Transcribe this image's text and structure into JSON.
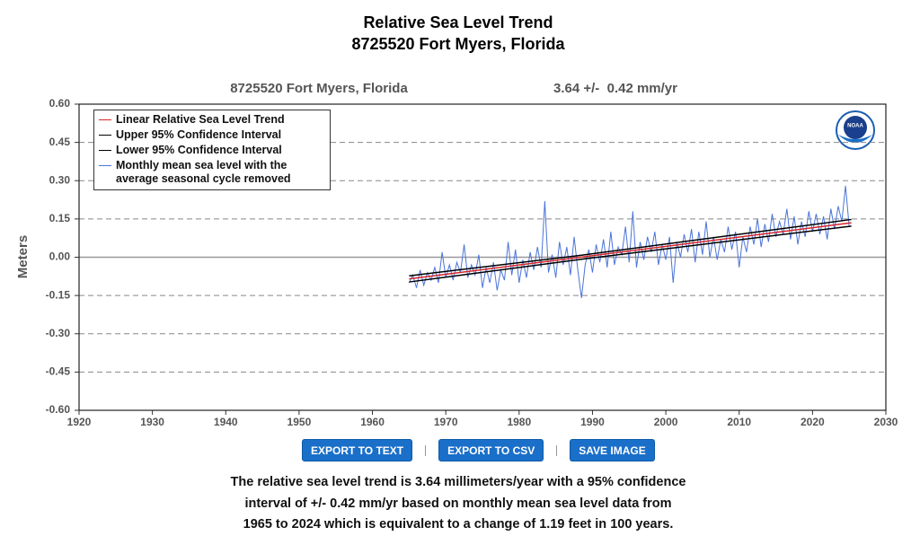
{
  "chart_data": {
    "type": "line",
    "title": "Relative Sea Level Trend",
    "subtitle": "8725520 Fort Myers, Florida",
    "plot_title": "8725520 Fort Myers, Florida",
    "trend_label": "3.64 +/-  0.42 mm/yr",
    "y_label": "Meters",
    "logo_text": "NOAA",
    "xlim": [
      1920,
      2030
    ],
    "xticks": [
      1920,
      1930,
      1940,
      1950,
      1960,
      1970,
      1980,
      1990,
      2000,
      2010,
      2020,
      2030
    ],
    "ylim": [
      -0.6,
      0.6
    ],
    "yticks": [
      {
        "value": 0.6,
        "label": "0.60"
      },
      0.45,
      {
        "value": 0.3,
        "label": "0.30"
      },
      0.15,
      {
        "value": 0,
        "label": "0.00"
      },
      -0.15,
      {
        "value": -0.3,
        "label": "-0.30"
      },
      -0.45,
      {
        "value": -0.6,
        "label": "-0.60"
      }
    ],
    "grid": true,
    "series": [
      {
        "name": "Linear Relative Sea Level Trend",
        "color": "#d62728",
        "x": [
          1965,
          2025.3
        ],
        "values": [
          -0.085,
          0.135
        ]
      },
      {
        "name": "Upper 95% Confidence Interval",
        "color": "#000000",
        "x": [
          1965,
          1988.5,
          2025.3
        ],
        "values": [
          -0.073,
          0.008,
          0.148
        ]
      },
      {
        "name": "Lower 95% Confidence Interval",
        "color": "#000000",
        "x": [
          1965,
          1988.5,
          2025.3
        ],
        "values": [
          -0.097,
          -0.008,
          0.122
        ]
      },
      {
        "name": "Monthly mean sea level with the average seasonal cycle removed",
        "color": "#4a74d9",
        "x": [
          1965,
          1965.5,
          1966,
          1966.5,
          1967,
          1967.5,
          1968,
          1968.5,
          1969,
          1969.5,
          1970,
          1970.5,
          1971,
          1971.5,
          1972,
          1972.5,
          1973,
          1973.5,
          1974,
          1974.5,
          1975,
          1975.5,
          1976,
          1976.5,
          1977,
          1977.5,
          1978,
          1978.5,
          1979,
          1979.5,
          1980,
          1980.5,
          1981,
          1981.5,
          1982,
          1982.5,
          1983,
          1983.5,
          1984,
          1984.5,
          1985,
          1985.5,
          1986,
          1986.5,
          1987,
          1987.5,
          1988,
          1988.5,
          1989,
          1989.5,
          1990,
          1990.5,
          1991,
          1991.5,
          1992,
          1992.5,
          1993,
          1993.5,
          1994,
          1994.5,
          1995,
          1995.5,
          1996,
          1996.5,
          1997,
          1997.5,
          1998,
          1998.5,
          1999,
          1999.5,
          2000,
          2000.5,
          2001,
          2001.5,
          2002,
          2002.5,
          2003,
          2003.5,
          2004,
          2004.5,
          2005,
          2005.5,
          2006,
          2006.5,
          2007,
          2007.5,
          2008,
          2008.5,
          2009,
          2009.5,
          2010,
          2010.5,
          2011,
          2011.5,
          2012,
          2012.5,
          2013,
          2013.5,
          2014,
          2014.5,
          2015,
          2015.5,
          2016,
          2016.5,
          2017,
          2017.5,
          2018,
          2018.5,
          2019,
          2019.5,
          2020,
          2020.5,
          2021,
          2021.5,
          2022,
          2022.5,
          2023,
          2023.5,
          2024,
          2024.5,
          2025
        ],
        "values": [
          -0.1,
          -0.07,
          -0.12,
          -0.05,
          -0.11,
          -0.06,
          -0.09,
          -0.04,
          -0.1,
          0.02,
          -0.08,
          -0.03,
          -0.09,
          -0.02,
          -0.06,
          0.05,
          -0.08,
          -0.03,
          -0.07,
          0.01,
          -0.12,
          -0.04,
          -0.1,
          -0.02,
          -0.13,
          -0.05,
          -0.09,
          0.06,
          -0.07,
          0.03,
          -0.1,
          -0.01,
          -0.08,
          0.02,
          -0.05,
          0.04,
          -0.04,
          0.22,
          -0.06,
          0.01,
          -0.08,
          0.06,
          -0.03,
          0.04,
          -0.07,
          0.08,
          -0.05,
          -0.16,
          -0.03,
          0.03,
          -0.06,
          0.05,
          -0.02,
          0.07,
          -0.04,
          0.1,
          -0.03,
          0.04,
          0.01,
          0.12,
          -0.02,
          0.18,
          -0.04,
          0.06,
          -0.01,
          0.08,
          0.02,
          0.1,
          -0.03,
          0.05,
          -0.01,
          0.08,
          -0.1,
          0.06,
          0.0,
          0.09,
          0.02,
          0.11,
          -0.02,
          0.1,
          0.01,
          0.14,
          0.0,
          0.08,
          -0.01,
          0.07,
          0.02,
          0.12,
          0.03,
          0.1,
          -0.04,
          0.08,
          0.02,
          0.12,
          0.05,
          0.15,
          0.04,
          0.13,
          0.06,
          0.17,
          0.08,
          0.14,
          0.09,
          0.19,
          0.07,
          0.16,
          0.05,
          0.14,
          0.08,
          0.18,
          0.1,
          0.17,
          0.09,
          0.16,
          0.07,
          0.19,
          0.11,
          0.2,
          0.14,
          0.28,
          0.12
        ]
      }
    ]
  },
  "buttons": [
    "EXPORT TO TEXT",
    "EXPORT TO CSV",
    "SAVE IMAGE"
  ],
  "footer": [
    "The relative sea level trend is 3.64 millimeters/year with a 95% confidence",
    "interval of +/- 0.42 mm/yr based on monthly mean sea level data from",
    "1965 to 2024 which is equivalent to a change of 1.19 feet in 100 years."
  ]
}
